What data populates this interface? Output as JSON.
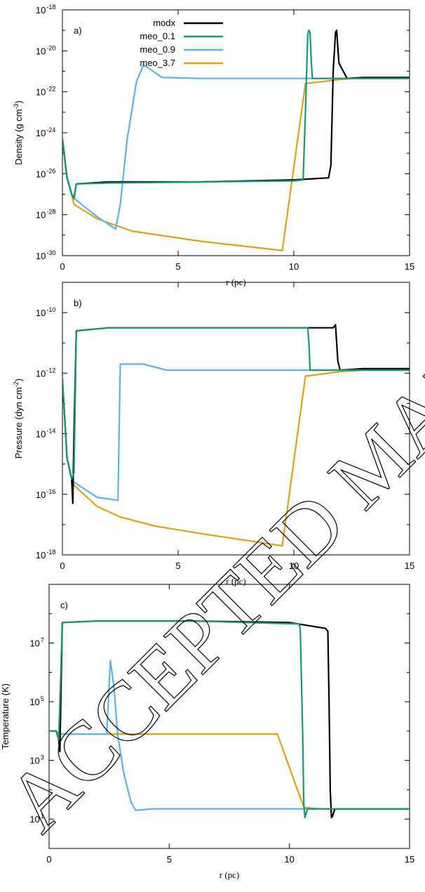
{
  "watermark": "ACCEPTED MANUSCRIPT",
  "colors": {
    "modx": "#000000",
    "meo_0.1": "#16977a",
    "meo_0.9": "#5ab4e5",
    "meo_3.7": "#e0a014"
  },
  "chart_data": [
    {
      "type": "line",
      "panel_label": "a)",
      "xlabel": "r (pc)",
      "ylabel_main": "Density (g cm",
      "ylabel_sup": "-3",
      "ylabel_end": ")",
      "xlim": [
        0,
        15
      ],
      "ylim_log10": [
        -30,
        -18
      ],
      "yscale": "log",
      "x_ticks": [
        "0",
        "5",
        "10",
        "15"
      ],
      "y_ticks": [
        {
          "base": "10",
          "exp": "-30"
        },
        {
          "base": "10",
          "exp": "-28"
        },
        {
          "base": "10",
          "exp": "-26"
        },
        {
          "base": "10",
          "exp": "-24"
        },
        {
          "base": "10",
          "exp": "-22"
        },
        {
          "base": "10",
          "exp": "-20"
        },
        {
          "base": "10",
          "exp": "-18"
        }
      ],
      "legend": [
        "modx",
        "meo_0.1",
        "meo_0.9",
        "meo_3.7"
      ],
      "series": [
        {
          "name": "modx",
          "x": [
            0,
            0.2,
            0.4,
            0.5,
            0.6,
            2,
            6,
            10,
            11.5,
            11.6,
            11.7,
            11.8,
            11.85,
            11.95,
            12.3,
            13,
            15
          ],
          "log10_y": [
            -24.3,
            -26.2,
            -27.0,
            -27.2,
            -26.5,
            -26.4,
            -26.4,
            -26.3,
            -26.2,
            -25.6,
            -21,
            -19.1,
            -19.0,
            -20.6,
            -21.35,
            -21.3,
            -21.3
          ]
        },
        {
          "name": "meo_0.1",
          "x": [
            0,
            0.2,
            0.4,
            0.5,
            0.6,
            2,
            6,
            10,
            10.4,
            10.5,
            10.6,
            10.65,
            10.7,
            10.75,
            10.8,
            11.5,
            15
          ],
          "log10_y": [
            -24.3,
            -26.2,
            -27.0,
            -27.2,
            -26.5,
            -26.45,
            -26.4,
            -26.35,
            -26.3,
            -23,
            -19.2,
            -19.0,
            -19.1,
            -20.5,
            -21.35,
            -21.35,
            -21.35
          ]
        },
        {
          "name": "meo_0.9",
          "x": [
            0,
            0.2,
            0.4,
            0.5,
            1.5,
            2.3,
            2.5,
            2.8,
            3.2,
            3.5,
            3.8,
            4.3,
            6,
            10,
            15
          ],
          "log10_y": [
            -24.3,
            -26.2,
            -27.0,
            -27.2,
            -28.1,
            -28.7,
            -27.5,
            -24.3,
            -21.5,
            -20.7,
            -20.9,
            -21.3,
            -21.35,
            -21.35,
            -21.35
          ]
        },
        {
          "name": "meo_3.7",
          "x": [
            0,
            0.2,
            0.4,
            0.5,
            1.5,
            3,
            6,
            9.5,
            10.5,
            12,
            13,
            15
          ],
          "log10_y": [
            -24.3,
            -26.2,
            -27.0,
            -27.5,
            -28.2,
            -28.8,
            -29.3,
            -29.75,
            -21.6,
            -21.4,
            -21.3,
            -21.3
          ]
        }
      ]
    },
    {
      "type": "line",
      "panel_label": "b)",
      "xlabel": "r (pc)",
      "ylabel_main": "Pressure (dyn cm",
      "ylabel_sup": "-2",
      "ylabel_end": ")",
      "xlim": [
        0,
        15
      ],
      "ylim_log10": [
        -18,
        -9
      ],
      "yscale": "log",
      "x_ticks": [
        "0",
        "5",
        "10",
        "15"
      ],
      "y_ticks": [
        {
          "base": "10",
          "exp": "-18"
        },
        {
          "base": "10",
          "exp": "-16"
        },
        {
          "base": "10",
          "exp": "-14"
        },
        {
          "base": "10",
          "exp": "-12"
        },
        {
          "base": "10",
          "exp": "-10"
        }
      ],
      "series": [
        {
          "name": "modx",
          "x": [
            0,
            0.2,
            0.4,
            0.45,
            0.5,
            0.6,
            2,
            6,
            11.7,
            11.8,
            11.9,
            12.0,
            13,
            15
          ],
          "log10_y": [
            -12.2,
            -14.8,
            -15.5,
            -16.3,
            -14,
            -10.6,
            -10.5,
            -10.5,
            -10.5,
            -10.4,
            -11.6,
            -11.9,
            -11.85,
            -11.85
          ]
        },
        {
          "name": "meo_0.1",
          "x": [
            0,
            0.2,
            0.4,
            0.5,
            0.6,
            2,
            6,
            10.6,
            10.65,
            10.7,
            11.5,
            15
          ],
          "log10_y": [
            -12.2,
            -14.8,
            -15.5,
            -15.3,
            -10.6,
            -10.5,
            -10.5,
            -10.5,
            -11,
            -11.9,
            -11.9,
            -11.9
          ]
        },
        {
          "name": "meo_0.9",
          "x": [
            0,
            0.2,
            0.4,
            0.5,
            1.5,
            2.4,
            2.5,
            2.55,
            3.5,
            4.0,
            4.5,
            6,
            10,
            15
          ],
          "log10_y": [
            -12.2,
            -14.8,
            -15.5,
            -15.6,
            -16.1,
            -16.2,
            -11.7,
            -11.7,
            -11.7,
            -11.8,
            -11.9,
            -11.9,
            -11.9,
            -11.9
          ]
        },
        {
          "name": "meo_3.7",
          "x": [
            0,
            0.2,
            0.4,
            0.5,
            1.5,
            2.5,
            4,
            6,
            9.5,
            10.5,
            12,
            13,
            15
          ],
          "log10_y": [
            -12.2,
            -14.8,
            -15.5,
            -15.7,
            -16.4,
            -16.75,
            -17.05,
            -17.3,
            -17.7,
            -12.1,
            -11.95,
            -11.9,
            -11.9
          ]
        }
      ]
    },
    {
      "type": "line",
      "panel_label": "c)",
      "xlabel": "r (pc)",
      "ylabel_main": "Temperature (K)",
      "ylabel_sup": "",
      "ylabel_end": "",
      "xlim": [
        0,
        15
      ],
      "ylim_log10": [
        0,
        9
      ],
      "yscale": "log",
      "x_ticks": [
        "0",
        "5",
        "10",
        "15"
      ],
      "y_ticks": [
        {
          "base": "10",
          "exp": "1"
        },
        {
          "base": "10",
          "exp": "3"
        },
        {
          "base": "10",
          "exp": "5"
        },
        {
          "base": "10",
          "exp": "7"
        }
      ],
      "series": [
        {
          "name": "modx",
          "x": [
            0,
            0.3,
            0.4,
            0.45,
            0.5,
            0.55,
            2,
            6,
            10,
            11.5,
            11.6,
            11.65,
            11.7,
            11.75,
            11.8,
            11.85,
            11.9,
            12.5,
            15
          ],
          "log10_y": [
            4.0,
            4.0,
            3.7,
            3.3,
            5.5,
            7.7,
            7.75,
            7.75,
            7.7,
            7.5,
            7.4,
            5,
            2,
            1.05,
            1.1,
            1.25,
            1.35,
            1.35,
            1.35
          ]
        },
        {
          "name": "meo_0.1",
          "x": [
            0,
            0.3,
            0.4,
            0.5,
            0.55,
            2,
            6,
            10.4,
            10.45,
            10.55,
            10.6,
            10.65,
            10.7,
            10.75,
            11.5,
            15
          ],
          "log10_y": [
            4.0,
            4.0,
            3.7,
            6.3,
            7.7,
            7.75,
            7.75,
            7.65,
            7.5,
            4,
            1.5,
            1.05,
            1.2,
            1.35,
            1.35,
            1.35
          ]
        },
        {
          "name": "meo_0.9",
          "x": [
            0,
            0.3,
            0.4,
            0.5,
            2.4,
            2.55,
            2.7,
            2.85,
            3.1,
            3.4,
            3.6,
            4.3,
            6,
            10,
            15
          ],
          "log10_y": [
            4.0,
            4.0,
            3.9,
            3.9,
            3.9,
            6.4,
            5.5,
            3.9,
            2.6,
            1.6,
            1.3,
            1.35,
            1.35,
            1.35,
            1.35
          ]
        },
        {
          "name": "meo_3.7",
          "x": [
            0,
            0.3,
            0.4,
            0.5,
            2,
            6,
            9.5,
            10.6,
            11.2,
            12,
            15
          ],
          "log10_y": [
            4.0,
            4.0,
            3.85,
            3.9,
            3.9,
            3.9,
            3.9,
            1.4,
            1.35,
            1.35,
            1.35
          ]
        }
      ]
    }
  ]
}
